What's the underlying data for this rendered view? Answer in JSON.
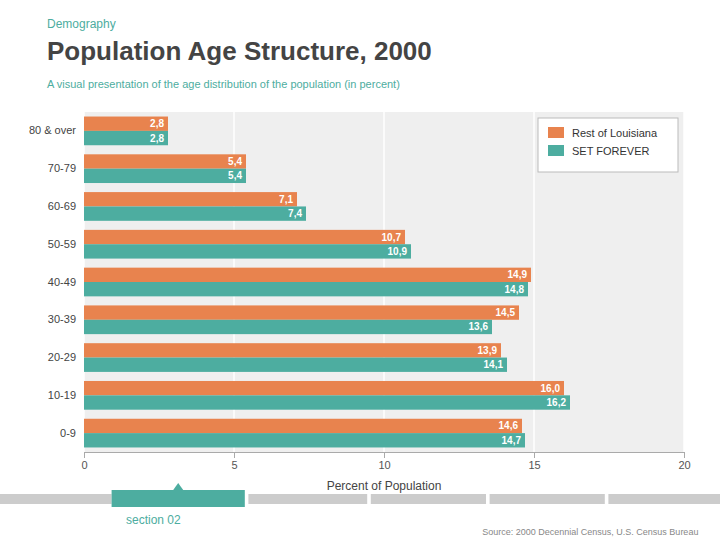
{
  "chart_data": {
    "type": "bar",
    "orientation": "horizontal",
    "title": "Population Age Structure, 2000",
    "subtitle": "A visual presentation of the age distribution of the population (in percent)",
    "annotations": [
      "Demography",
      "section 02",
      "Source: 2000 Decennial Census, U.S. Census Bureau"
    ],
    "x_label": "Percent of Population",
    "categories": [
      "80 & over",
      "70-79",
      "60-69",
      "50-59",
      "40-49",
      "30-39",
      "20-29",
      "10-19",
      "0-9"
    ],
    "series": [
      {
        "name": "Rest of Louisiana",
        "color": "#E8834E",
        "values": [
          2.8,
          5.4,
          7.1,
          10.7,
          14.9,
          14.5,
          13.9,
          16.0,
          14.6
        ],
        "value_labels": [
          "2,8",
          "5,4",
          "7,1",
          "10,7",
          "14,9",
          "14,5",
          "13,9",
          "16,0",
          "14,6"
        ]
      },
      {
        "name": "SET FOREVER",
        "color": "#4DADA0",
        "values": [
          2.8,
          5.4,
          7.4,
          10.9,
          14.8,
          13.6,
          14.1,
          16.2,
          14.7
        ],
        "value_labels": [
          "2,8",
          "5,4",
          "7,4",
          "10,9",
          "14,8",
          "13,6",
          "14,1",
          "16,2",
          "14,7"
        ]
      }
    ],
    "xlim": [
      0,
      20
    ],
    "xticks": [
      0,
      5,
      10,
      15,
      20
    ],
    "grid": true,
    "legend": "top-right",
    "data_labels": true
  }
}
